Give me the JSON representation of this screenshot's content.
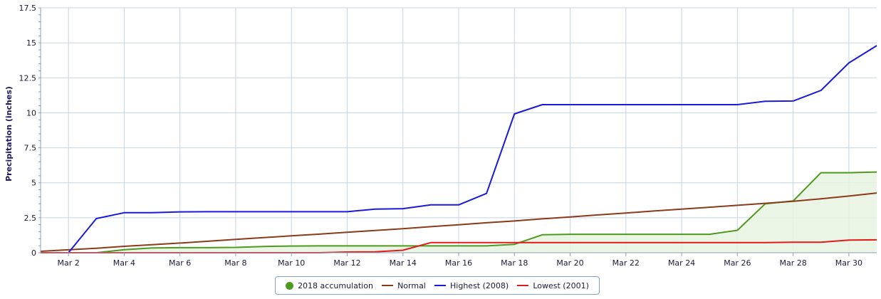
{
  "chart_data": {
    "type": "line",
    "ylabel": "Precipitation (inches)",
    "xlabel": "",
    "ylim": [
      0,
      17.5
    ],
    "xlim": [
      1,
      31
    ],
    "yticks": [
      {
        "v": 0,
        "label": "0"
      },
      {
        "v": 2.5,
        "label": "2.5"
      },
      {
        "v": 5,
        "label": "5"
      },
      {
        "v": 7.5,
        "label": "7.5"
      },
      {
        "v": 10,
        "label": "10"
      },
      {
        "v": 12.5,
        "label": "12.5"
      },
      {
        "v": 15,
        "label": "15"
      },
      {
        "v": 17.5,
        "label": "17.5"
      }
    ],
    "xticks": [
      {
        "day": 2,
        "label": "Mar 2"
      },
      {
        "day": 4,
        "label": "Mar 4"
      },
      {
        "day": 6,
        "label": "Mar 6"
      },
      {
        "day": 8,
        "label": "Mar 8"
      },
      {
        "day": 10,
        "label": "Mar 10"
      },
      {
        "day": 12,
        "label": "Mar 12"
      },
      {
        "day": 14,
        "label": "Mar 14"
      },
      {
        "day": 16,
        "label": "Mar 16"
      },
      {
        "day": 18,
        "label": "Mar 18"
      },
      {
        "day": 20,
        "label": "Mar 20"
      },
      {
        "day": 22,
        "label": "Mar 22"
      },
      {
        "day": 24,
        "label": "Mar 24"
      },
      {
        "day": 26,
        "label": "Mar 26"
      },
      {
        "day": 28,
        "label": "Mar 28"
      },
      {
        "day": 30,
        "label": "Mar 30"
      }
    ],
    "grid": true,
    "legend_position": "bottom-center",
    "x": [
      1,
      2,
      3,
      4,
      5,
      6,
      7,
      8,
      9,
      10,
      11,
      12,
      13,
      14,
      15,
      16,
      17,
      18,
      19,
      20,
      21,
      22,
      23,
      24,
      25,
      26,
      27,
      28,
      29,
      30,
      31
    ],
    "series": [
      {
        "name": "2018 accumulation",
        "color": "#4e9a1e",
        "fill": "#e8f3e0",
        "area": true,
        "symbol": "dot",
        "values": [
          0,
          0,
          0,
          0.22,
          0.34,
          0.36,
          0.36,
          0.38,
          0.45,
          0.48,
          0.49,
          0.49,
          0.49,
          0.49,
          0.49,
          0.49,
          0.49,
          0.6,
          1.28,
          1.32,
          1.32,
          1.32,
          1.32,
          1.32,
          1.32,
          1.6,
          3.5,
          3.7,
          5.72,
          5.72,
          5.77
        ]
      },
      {
        "name": "Normal",
        "color": "#8b3a1a",
        "area": false,
        "symbol": "line",
        "values": [
          0.1,
          0.21,
          0.32,
          0.46,
          0.57,
          0.69,
          0.82,
          0.95,
          1.08,
          1.21,
          1.33,
          1.46,
          1.59,
          1.72,
          1.86,
          2.0,
          2.14,
          2.27,
          2.42,
          2.56,
          2.7,
          2.84,
          2.98,
          3.12,
          3.25,
          3.39,
          3.53,
          3.68,
          3.85,
          4.05,
          4.27
        ]
      },
      {
        "name": "Highest (2008)",
        "color": "#1a1adb",
        "area": false,
        "symbol": "line",
        "values": [
          0,
          0,
          2.44,
          2.86,
          2.86,
          2.92,
          2.93,
          2.93,
          2.93,
          2.93,
          2.93,
          2.93,
          3.12,
          3.15,
          3.42,
          3.42,
          4.24,
          9.92,
          10.58,
          10.58,
          10.58,
          10.58,
          10.58,
          10.58,
          10.58,
          10.58,
          10.82,
          10.84,
          11.6,
          13.56,
          14.8
        ]
      },
      {
        "name": "Lowest (2001)",
        "color": "#e01b1b",
        "area": false,
        "symbol": "line",
        "values": [
          0,
          0,
          0,
          0,
          0,
          0,
          0,
          0,
          0,
          0,
          0,
          0.05,
          0.06,
          0.18,
          0.72,
          0.72,
          0.72,
          0.72,
          0.72,
          0.72,
          0.72,
          0.72,
          0.72,
          0.72,
          0.72,
          0.72,
          0.72,
          0.75,
          0.75,
          0.9,
          0.92
        ]
      }
    ]
  }
}
